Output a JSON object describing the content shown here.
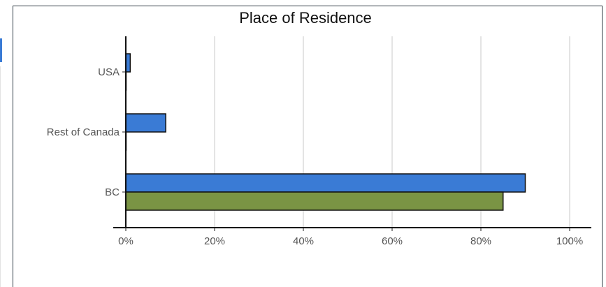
{
  "chart_data": {
    "type": "bar",
    "orientation": "horizontal",
    "title": "Place of Residence",
    "xlabel": "",
    "ylabel": "",
    "categories": [
      "USA",
      "Rest of Canada",
      "BC"
    ],
    "series": [
      {
        "color": "#3a7bd5",
        "values": [
          1,
          9,
          90
        ]
      },
      {
        "color": "#7a9444",
        "values": [
          0,
          0,
          85
        ]
      }
    ],
    "xlim": [
      0,
      100
    ],
    "x_ticks": [
      "0%",
      "20%",
      "40%",
      "60%",
      "80%",
      "100%"
    ],
    "grid": "vertical",
    "legend": "none"
  }
}
